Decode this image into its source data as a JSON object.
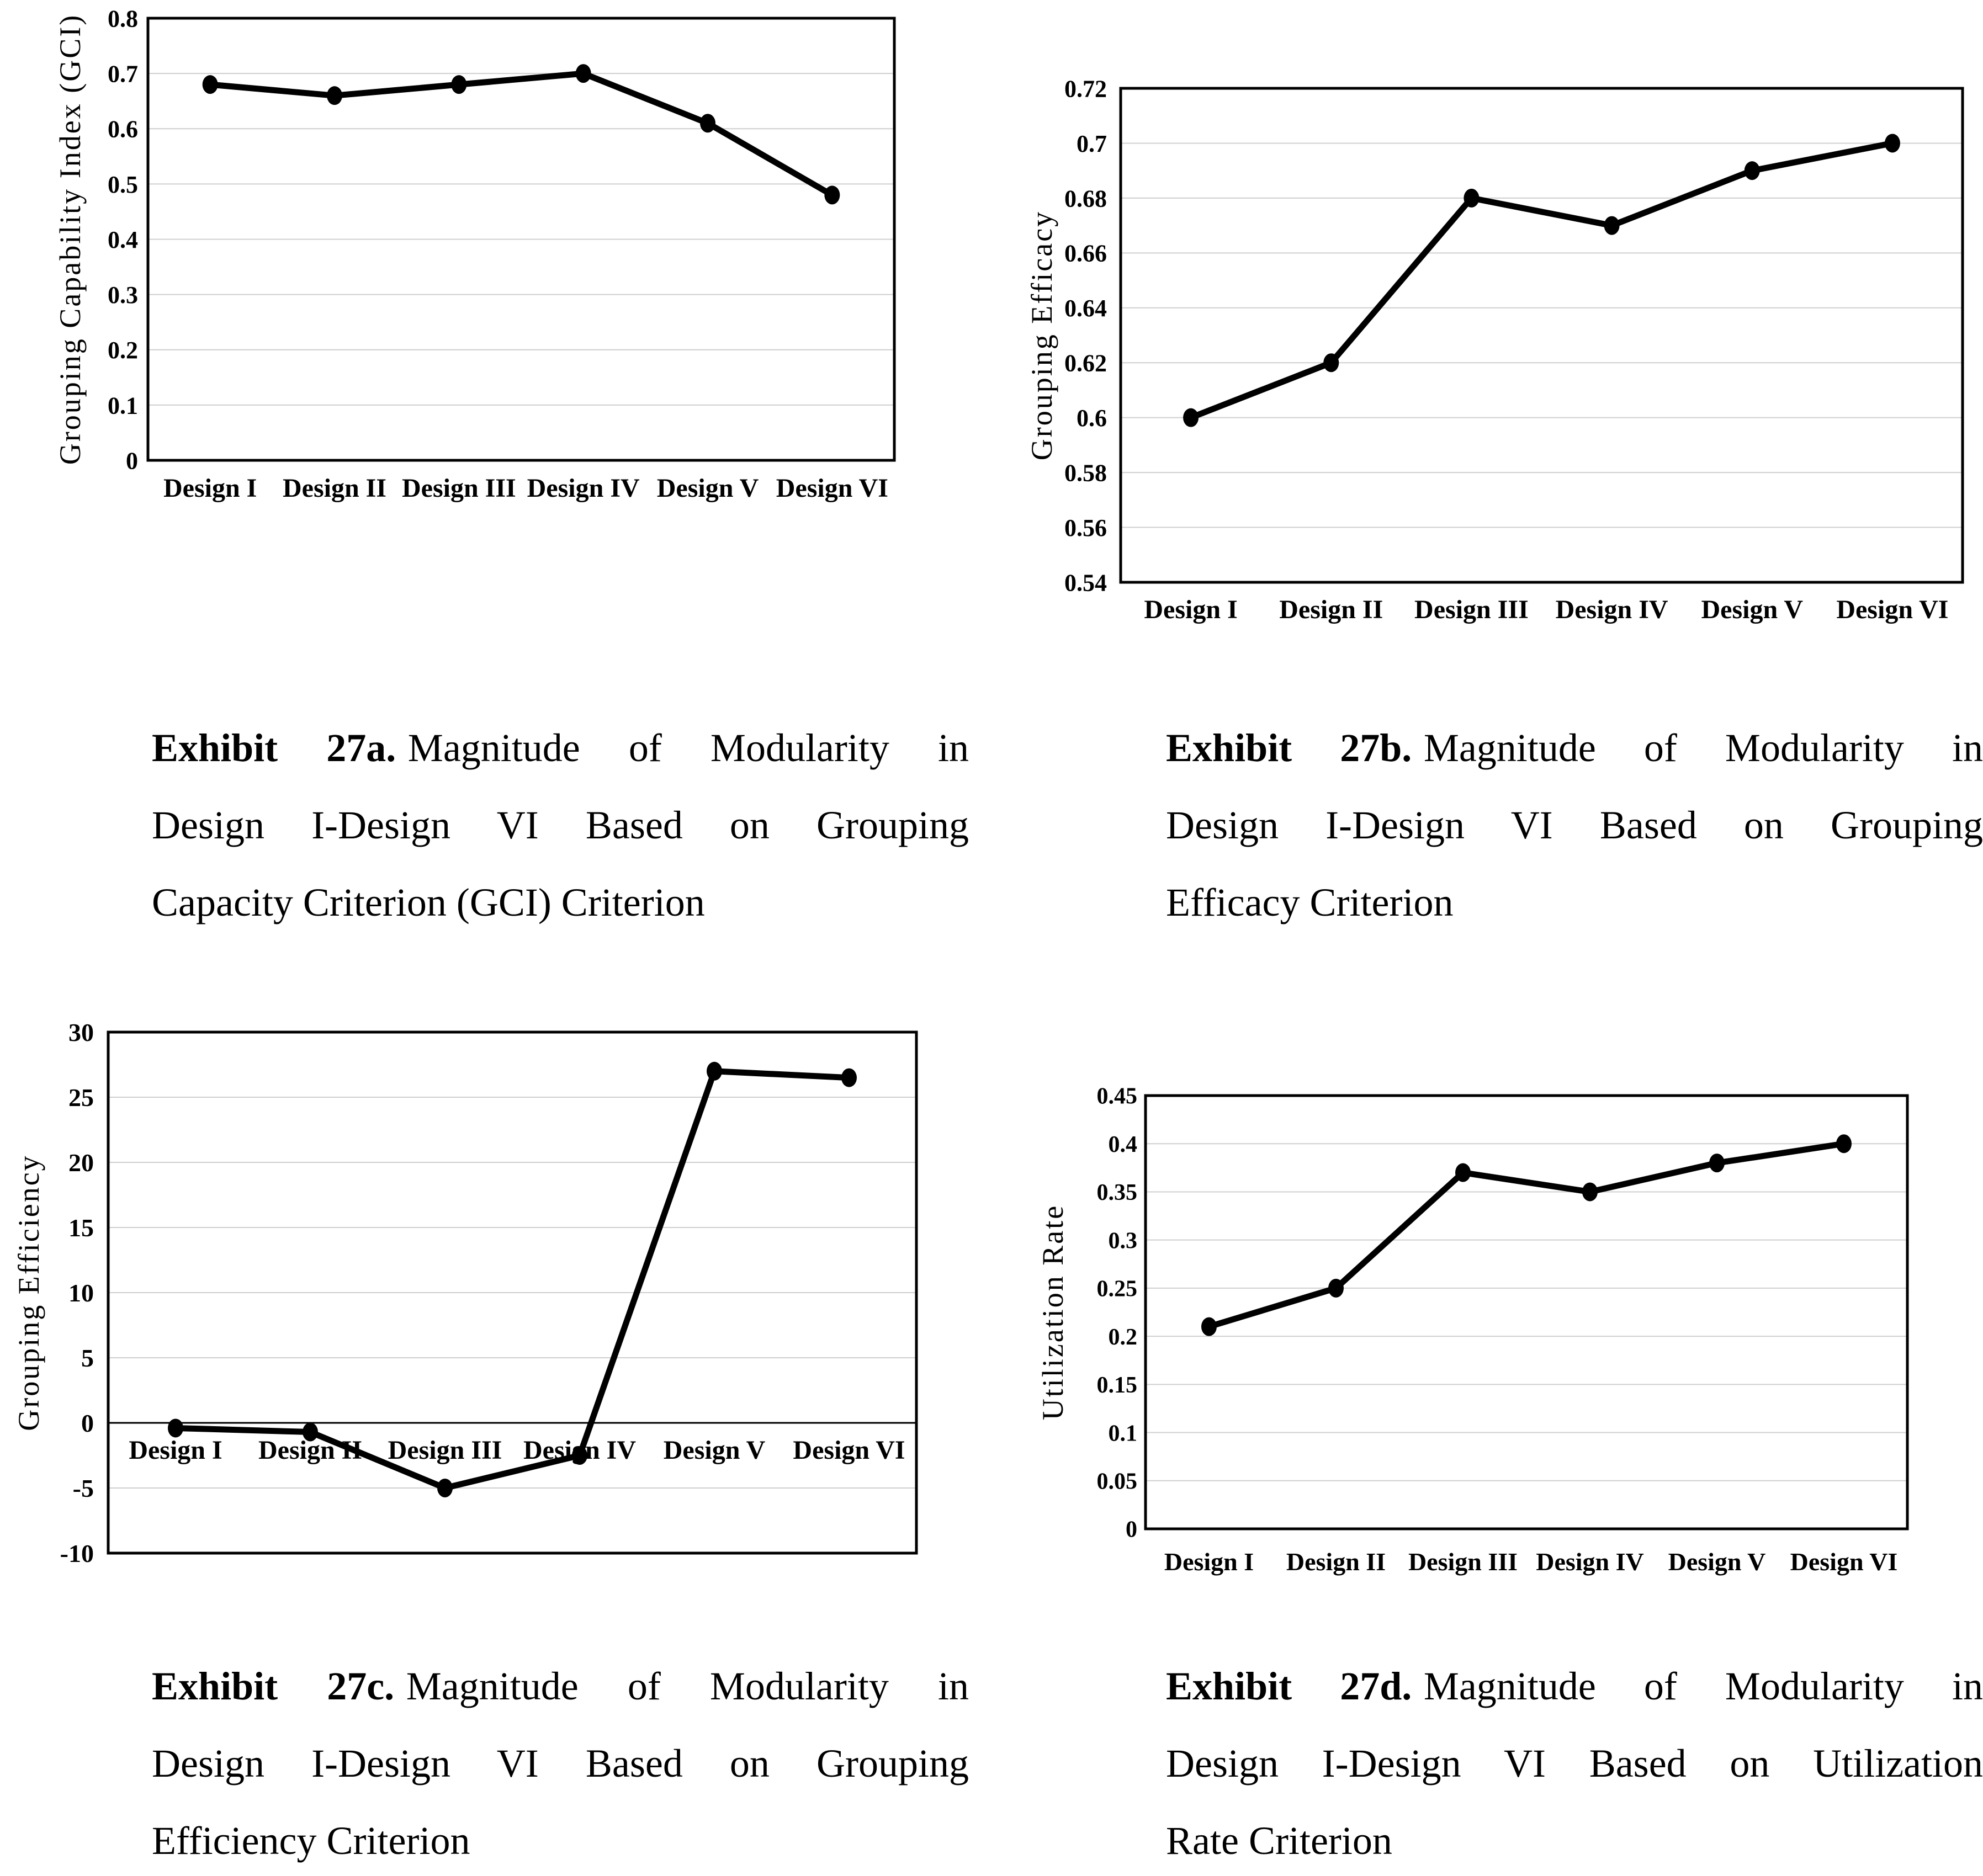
{
  "colors": {
    "line": "#000000",
    "marker": "#000000",
    "grid": "#cfcfcf",
    "frame": "#000000",
    "text": "#000000",
    "background": "#ffffff"
  },
  "chart_data": [
    {
      "id": "27a",
      "type": "line",
      "title": "",
      "xlabel": "",
      "ylabel": "Grouping Capability Index (GCI)",
      "categories": [
        "Design I",
        "Design II",
        "Design III",
        "Design IV",
        "Design V",
        "Design VI"
      ],
      "values": [
        0.68,
        0.66,
        0.68,
        0.7,
        0.61,
        0.48
      ],
      "ylim": [
        0,
        0.8
      ],
      "ytick_labels": [
        "0",
        "0.1",
        "0.2",
        "0.3",
        "0.4",
        "0.5",
        "0.6",
        "0.7",
        "0.8"
      ],
      "grid": true,
      "legend": "none",
      "marker": "filled-circle"
    },
    {
      "id": "27b",
      "type": "line",
      "title": "",
      "xlabel": "",
      "ylabel": "Grouping Efficacy",
      "categories": [
        "Design I",
        "Design II",
        "Design III",
        "Design IV",
        "Design V",
        "Design VI"
      ],
      "values": [
        0.6,
        0.62,
        0.68,
        0.67,
        0.69,
        0.7
      ],
      "ylim": [
        0.54,
        0.72
      ],
      "ytick_labels": [
        "0.54",
        "0.56",
        "0.58",
        "0.6",
        "0.62",
        "0.64",
        "0.66",
        "0.68",
        "0.7",
        "0.72"
      ],
      "grid": true,
      "legend": "none",
      "marker": "filled-circle"
    },
    {
      "id": "27c",
      "type": "line",
      "title": "",
      "xlabel": "",
      "ylabel": "Grouping Efficiency",
      "categories": [
        "Design I",
        "Design II",
        "Design III",
        "Design IV",
        "Design V",
        "Design VI"
      ],
      "values": [
        -0.4,
        -0.7,
        -5,
        -2.5,
        27,
        26.5
      ],
      "ylim": [
        -10,
        30
      ],
      "ytick_labels": [
        "-10",
        "-5",
        "0",
        "5",
        "10",
        "15",
        "20",
        "25",
        "30"
      ],
      "grid": true,
      "legend": "none",
      "marker": "filled-circle"
    },
    {
      "id": "27d",
      "type": "line",
      "title": "",
      "xlabel": "",
      "ylabel": "Utilization Rate",
      "categories": [
        "Design I",
        "Design II",
        "Design III",
        "Design IV",
        "Design V",
        "Design VI"
      ],
      "values": [
        0.21,
        0.25,
        0.37,
        0.35,
        0.38,
        0.4
      ],
      "ylim": [
        0,
        0.45
      ],
      "ytick_labels": [
        "0",
        "0.05",
        "0.1",
        "0.15",
        "0.2",
        "0.25",
        "0.3",
        "0.35",
        "0.4",
        "0.45"
      ],
      "grid": true,
      "legend": "none",
      "marker": "filled-circle"
    }
  ],
  "captions": [
    {
      "label": "Exhibit 27a.",
      "lines": [
        "Magnitude of Modularity in",
        "Design I-Design VI Based on Grouping",
        "Capacity Criterion (GCI) Criterion"
      ]
    },
    {
      "label": "Exhibit 27b.",
      "lines": [
        "Magnitude of Modularity in",
        "Design I-Design VI Based on Grouping",
        "Efficacy Criterion"
      ]
    },
    {
      "label": "Exhibit 27c.",
      "lines": [
        "Magnitude of Modularity in",
        "Design I-Design VI Based on Grouping",
        "Efficiency Criterion"
      ]
    },
    {
      "label": "Exhibit 27d.",
      "lines": [
        "Magnitude of Modularity in",
        "Design I-Design VI Based on Utilization",
        "Rate Criterion"
      ]
    }
  ]
}
